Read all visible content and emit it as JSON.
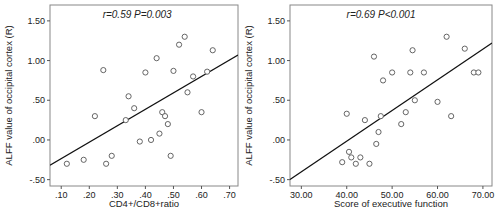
{
  "chart_data": [
    {
      "type": "scatter",
      "annotation": "r=0.59 P=0.003",
      "x_label": "CD4+/CD8+ratio",
      "y_label": "ALFF value of occipital cortex (R)",
      "x": [
        0.12,
        0.18,
        0.22,
        0.25,
        0.26,
        0.28,
        0.33,
        0.34,
        0.36,
        0.38,
        0.4,
        0.42,
        0.44,
        0.45,
        0.46,
        0.47,
        0.48,
        0.49,
        0.5,
        0.52,
        0.54,
        0.55,
        0.57,
        0.6,
        0.62,
        0.64
      ],
      "values": [
        -0.3,
        -0.25,
        0.3,
        0.88,
        -0.3,
        -0.2,
        0.25,
        0.55,
        0.4,
        -0.02,
        0.85,
        0.0,
        1.03,
        0.08,
        0.35,
        0.3,
        0.2,
        -0.2,
        0.87,
        1.2,
        1.3,
        0.6,
        0.8,
        0.35,
        0.86,
        1.13
      ],
      "xlim": [
        0.06,
        0.73
      ],
      "ylim": [
        -0.58,
        1.7
      ],
      "xticks": [
        {
          "value": 0.1,
          "label": ".10"
        },
        {
          "value": 0.2,
          "label": ".20"
        },
        {
          "value": 0.3,
          "label": ".30"
        },
        {
          "value": 0.4,
          "label": ".40"
        },
        {
          "value": 0.5,
          "label": ".50"
        },
        {
          "value": 0.6,
          "label": ".60"
        },
        {
          "value": 0.7,
          "label": ".70"
        }
      ],
      "yticks": [
        {
          "value": -0.5,
          "label": "-.50"
        },
        {
          "value": 0,
          "label": ".00"
        },
        {
          "value": 0.5,
          "label": ".50"
        },
        {
          "value": 1,
          "label": "1.00"
        },
        {
          "value": 1.5,
          "label": "1.50"
        }
      ],
      "marker": "open-circle",
      "color": "#555555"
    },
    {
      "type": "scatter",
      "annotation": "r=0.69 P<0.001",
      "x_label": "Score of executive function",
      "y_label": "ALFF value of occipital cortex (R)",
      "x": [
        39,
        40,
        40.5,
        41,
        42,
        43,
        44,
        45,
        46,
        46.5,
        47,
        47.5,
        48,
        50,
        52,
        53,
        54,
        54.5,
        55,
        57,
        60,
        62,
        63,
        66,
        68,
        69
      ],
      "values": [
        -0.28,
        0.33,
        -0.15,
        -0.22,
        -0.3,
        -0.22,
        0.25,
        -0.3,
        1.05,
        -0.05,
        0.1,
        0.3,
        0.75,
        0.85,
        0.2,
        0.35,
        0.85,
        1.13,
        0.5,
        0.85,
        0.48,
        1.3,
        0.3,
        1.15,
        0.85,
        0.85
      ],
      "xlim": [
        27.5,
        72
      ],
      "ylim": [
        -0.58,
        1.7
      ],
      "xticks": [
        {
          "value": 30,
          "label": "30.00"
        },
        {
          "value": 40,
          "label": "40.00"
        },
        {
          "value": 50,
          "label": "50.00"
        },
        {
          "value": 60,
          "label": "60.00"
        },
        {
          "value": 70,
          "label": "70.00"
        }
      ],
      "yticks": [
        {
          "value": -0.5,
          "label": "-.50"
        },
        {
          "value": 0,
          "label": ".00"
        },
        {
          "value": 0.5,
          "label": ".50"
        },
        {
          "value": 1,
          "label": "1.00"
        },
        {
          "value": 1.5,
          "label": "1.50"
        }
      ],
      "marker": "open-circle",
      "color": "#555555"
    }
  ]
}
